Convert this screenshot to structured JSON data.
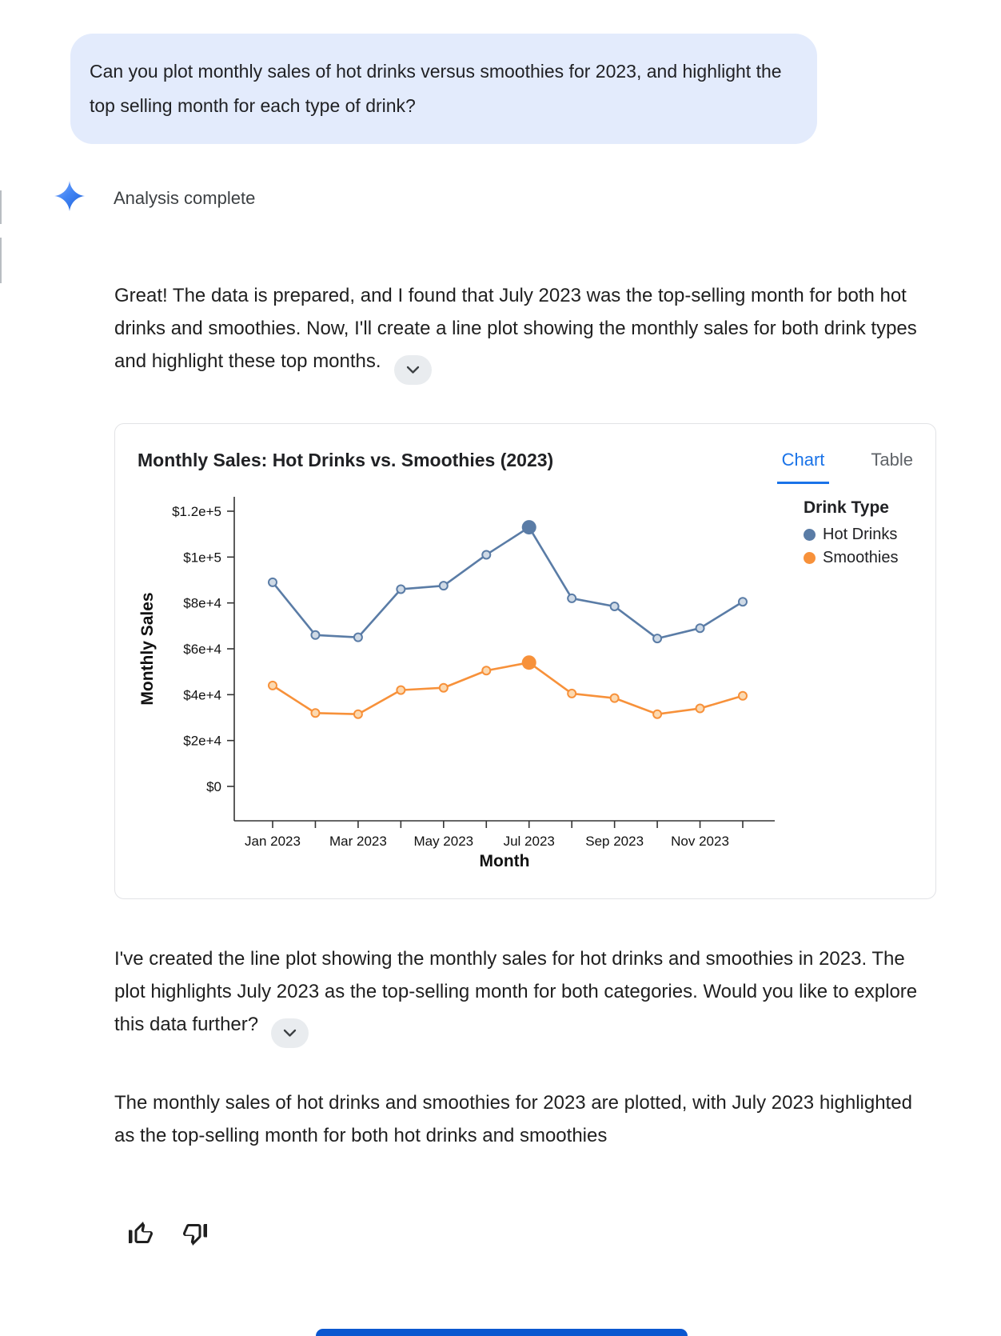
{
  "user_message": {
    "text": "Can you plot monthly sales of hot drinks versus smoothies for 2023, and highlight the top selling month for each type of drink?"
  },
  "status": {
    "label": "Analysis complete"
  },
  "responses": {
    "r1": "Great! The data is prepared, and I found that July 2023 was the top-selling month for both hot drinks and smoothies. Now, I'll create a line plot showing the monthly sales for both drink types and highlight these top months.",
    "r2": "I've created the line plot showing the monthly sales for hot drinks and smoothies in 2023. The plot highlights July 2023 as the top-selling month for both categories. Would you like to explore this data further?",
    "r3": "The monthly sales of hot drinks and smoothies for 2023 are plotted, with July 2023 highlighted as the top-selling month for both hot drinks and smoothies"
  },
  "chart_card": {
    "title": "Monthly Sales: Hot Drinks vs. Smoothies (2023)",
    "tabs": [
      {
        "label": "Chart",
        "active": true
      },
      {
        "label": "Table",
        "active": false
      }
    ],
    "legend": {
      "title": "Drink Type",
      "items": [
        {
          "label": "Hot Drinks",
          "color": "#5a7ca6"
        },
        {
          "label": "Smoothies",
          "color": "#f7913a"
        }
      ]
    }
  },
  "chart_data": {
    "type": "line",
    "title": "Monthly Sales: Hot Drinks vs. Smoothies (2023)",
    "xlabel": "Month",
    "ylabel": "Monthly Sales",
    "categories": [
      "Jan 2023",
      "Feb 2023",
      "Mar 2023",
      "Apr 2023",
      "May 2023",
      "Jun 2023",
      "Jul 2023",
      "Aug 2023",
      "Sep 2023",
      "Oct 2023",
      "Nov 2023",
      "Dec 2023"
    ],
    "x_tick_labels": [
      "Jan 2023",
      "Mar 2023",
      "May 2023",
      "Jul 2023",
      "Sep 2023",
      "Nov 2023"
    ],
    "y_ticks": [
      0,
      20000,
      40000,
      60000,
      80000,
      100000,
      120000
    ],
    "y_tick_labels": [
      "$0",
      "$2e+4",
      "$4e+4",
      "$6e+4",
      "$8e+4",
      "$1e+5",
      "$1.2e+5"
    ],
    "ylim": [
      -15000,
      127000
    ],
    "grid": false,
    "legend_position": "right",
    "series": [
      {
        "name": "Hot Drinks",
        "color": "#5a7ca6",
        "marker_fill": "#cfdae6",
        "values": [
          89000,
          66000,
          65000,
          86000,
          87500,
          101000,
          113000,
          82000,
          78500,
          64500,
          69000,
          80500
        ],
        "highlight_index": 6,
        "highlight_label": "Jul 2023"
      },
      {
        "name": "Smoothies",
        "color": "#f7913a",
        "marker_fill": "#fcd9b0",
        "values": [
          44000,
          32000,
          31500,
          42000,
          43000,
          50500,
          54000,
          40500,
          38500,
          31500,
          34000,
          39500
        ],
        "highlight_index": 6,
        "highlight_label": "Jul 2023"
      }
    ]
  },
  "icons": {
    "sparkle": "four-point-star",
    "chevron_down": "⌄",
    "thumb_up": "thumb-up-outline",
    "thumb_down": "thumb-down-outline"
  },
  "colors": {
    "accent_blue": "#1a73e8",
    "user_bubble_bg": "#e3ebfc",
    "bottom_bar": "#0b57d0",
    "axis": "#333333",
    "tab_inactive": "#5f6368"
  }
}
